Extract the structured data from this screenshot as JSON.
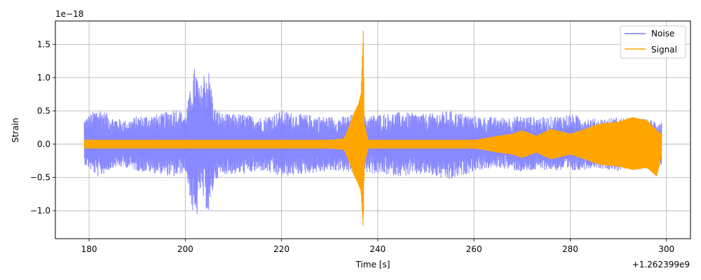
{
  "chart_data": {
    "type": "line",
    "xlabel": "Time [s]",
    "ylabel": "Strain",
    "x_offset_text": "+1.262399e9",
    "y_scale_text": "1e−18",
    "xlim": [
      173,
      305
    ],
    "ylim": [
      -1.42,
      1.85
    ],
    "xticks": [
      180,
      200,
      220,
      240,
      260,
      280,
      300
    ],
    "xtick_labels": [
      "180",
      "200",
      "220",
      "240",
      "260",
      "280",
      "300"
    ],
    "yticks": [
      -1.0,
      -0.5,
      0.0,
      0.5,
      1.0,
      1.5
    ],
    "ytick_labels": [
      "−1.0",
      "−0.5",
      "0.0",
      "0.5",
      "1.0",
      "1.5"
    ],
    "grid": true,
    "legend_position": "top-right",
    "series": [
      {
        "name": "Noise",
        "color": "#7b7bff",
        "envelope": {
          "t": [
            179,
            182,
            185,
            188,
            190,
            195,
            198,
            200,
            201,
            202,
            202.5,
            203,
            204,
            205,
            206,
            208,
            212,
            216,
            220,
            224,
            228,
            232,
            235,
            237,
            240,
            245,
            250,
            255,
            260,
            265,
            270,
            275,
            280,
            285,
            290,
            295,
            299
          ],
          "upper": [
            0.38,
            0.55,
            0.4,
            0.35,
            0.42,
            0.45,
            0.55,
            0.45,
            0.8,
            1.18,
            1.05,
            0.8,
            1.12,
            1.1,
            0.55,
            0.45,
            0.45,
            0.4,
            0.5,
            0.45,
            0.42,
            0.4,
            0.45,
            0.42,
            0.45,
            0.48,
            0.45,
            0.5,
            0.42,
            0.4,
            0.42,
            0.4,
            0.45,
            0.38,
            0.4,
            0.38,
            0.35
          ],
          "lower": [
            -0.3,
            -0.5,
            -0.35,
            -0.35,
            -0.4,
            -0.45,
            -0.5,
            -0.4,
            -0.8,
            -1.27,
            -1.05,
            -0.7,
            -0.9,
            -1.1,
            -0.55,
            -0.45,
            -0.45,
            -0.4,
            -0.5,
            -0.45,
            -0.42,
            -0.4,
            -0.45,
            -0.42,
            -0.45,
            -0.48,
            -0.45,
            -0.55,
            -0.4,
            -0.35,
            -0.42,
            -0.38,
            -0.42,
            -0.35,
            -0.4,
            -0.38,
            -0.32
          ]
        }
      },
      {
        "name": "Signal",
        "color": "#ffa500",
        "envelope": {
          "t": [
            179,
            190,
            200,
            210,
            220,
            230,
            233,
            234,
            235,
            236,
            236.5,
            237,
            237.2,
            238,
            240,
            250,
            260,
            262,
            265,
            268,
            270,
            273,
            276,
            280,
            283,
            286,
            290,
            293,
            296,
            298,
            299
          ],
          "upper": [
            0.06,
            0.06,
            0.06,
            0.06,
            0.06,
            0.06,
            0.08,
            0.25,
            0.45,
            0.6,
            0.75,
            1.7,
            0.3,
            0.06,
            0.06,
            0.06,
            0.06,
            0.08,
            0.12,
            0.15,
            0.2,
            0.12,
            0.22,
            0.15,
            0.22,
            0.3,
            0.33,
            0.4,
            0.35,
            0.2,
            0.15
          ],
          "lower": [
            -0.06,
            -0.06,
            -0.06,
            -0.06,
            -0.06,
            -0.06,
            -0.08,
            -0.25,
            -0.45,
            -0.6,
            -0.7,
            -1.28,
            -0.3,
            -0.06,
            -0.06,
            -0.06,
            -0.06,
            -0.08,
            -0.12,
            -0.15,
            -0.2,
            -0.12,
            -0.22,
            -0.15,
            -0.22,
            -0.3,
            -0.33,
            -0.38,
            -0.35,
            -0.48,
            -0.15
          ]
        }
      }
    ]
  }
}
